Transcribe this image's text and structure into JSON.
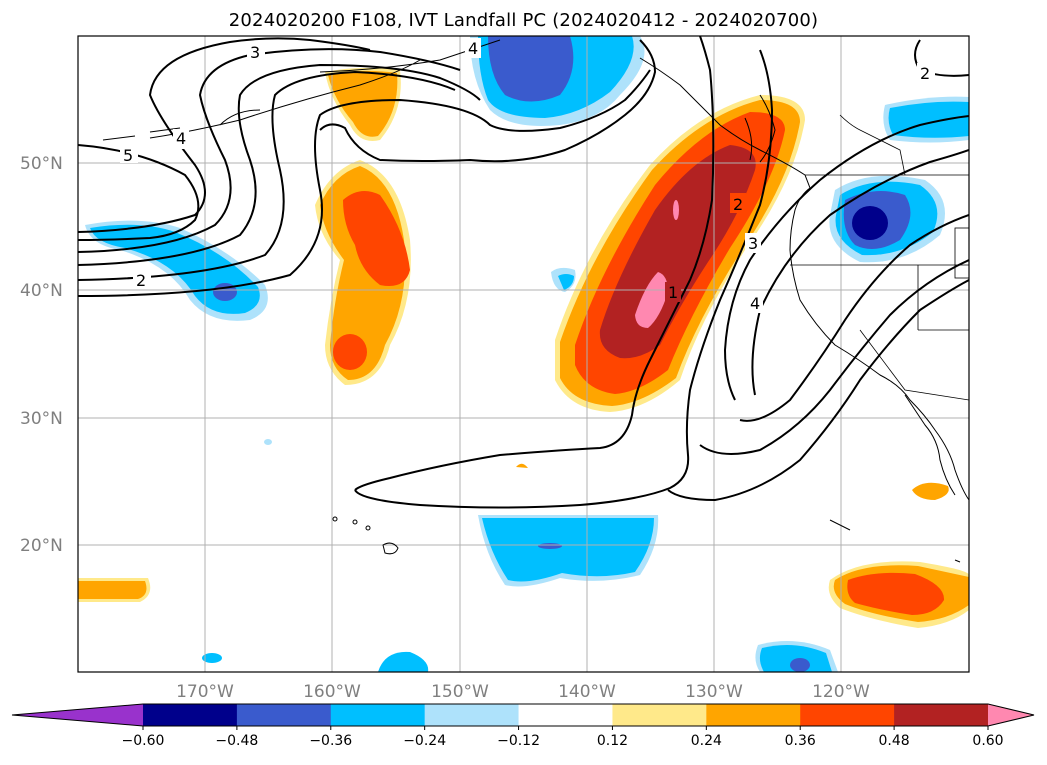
{
  "title": "2024020200 F108, IVT Landfall PC (2024020412 - 2024020700)",
  "lat_labels": [
    "50°N",
    "40°N",
    "30°N",
    "20°N"
  ],
  "lon_labels": [
    "170°W",
    "160°W",
    "150°W",
    "140°W",
    "130°W",
    "120°W"
  ],
  "colorbar": {
    "ticks": [
      "−0.60",
      "−0.48",
      "−0.36",
      "−0.24",
      "−0.12",
      "0.12",
      "0.24",
      "0.36",
      "0.48",
      "0.60"
    ],
    "colors": [
      "#9932cc",
      "#00008b",
      "#3a5bcd",
      "#00bfff",
      "#aee2fb",
      "#ffffff",
      "#ffe98a",
      "#ffa500",
      "#ff4500",
      "#b22222",
      "#ff88b0"
    ]
  },
  "contour_labels": [
    "3",
    "4",
    "5",
    "4",
    "2",
    "1",
    "2",
    "3",
    "4",
    "2"
  ]
}
